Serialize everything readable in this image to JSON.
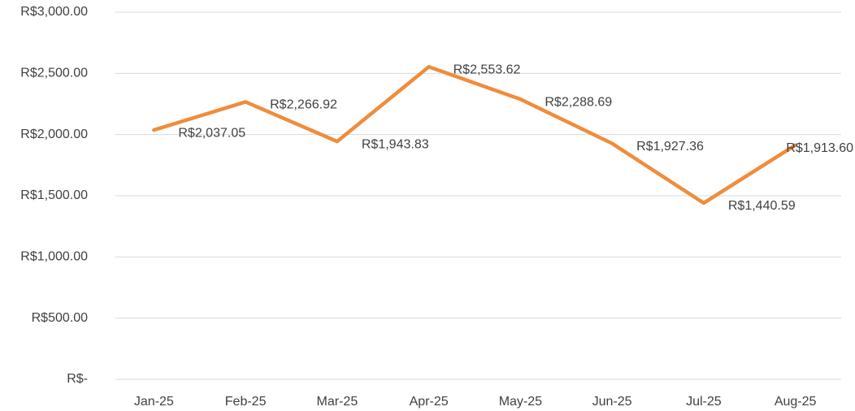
{
  "chart_data": {
    "type": "line",
    "categories": [
      "Jan-25",
      "Feb-25",
      "Mar-25",
      "Apr-25",
      "May-25",
      "Jun-25",
      "Jul-25",
      "Aug-25"
    ],
    "series": [
      {
        "color": "#ef8d3c",
        "values": [
          2037.05,
          2266.92,
          1943.83,
          2553.62,
          2288.69,
          1927.36,
          1440.59,
          1913.6
        ],
        "value_labels": [
          "R$2,037.05",
          "R$2,266.92",
          "R$1,943.83",
          "R$2,553.62",
          "R$2,288.69",
          "R$1,927.36",
          "R$1,440.59",
          "R$1,913.60"
        ]
      }
    ],
    "ylim": [
      0,
      3000
    ],
    "yticks": [
      {
        "value": 0,
        "label": "R$-"
      },
      {
        "value": 500,
        "label": "R$500.00"
      },
      {
        "value": 1000,
        "label": "R$1,000.00"
      },
      {
        "value": 1500,
        "label": "R$1,500.00"
      },
      {
        "value": 2000,
        "label": "R$2,000.00"
      },
      {
        "value": 2500,
        "label": "R$2,500.00"
      },
      {
        "value": 3000,
        "label": "R$3,000.00"
      }
    ],
    "grid": true
  }
}
